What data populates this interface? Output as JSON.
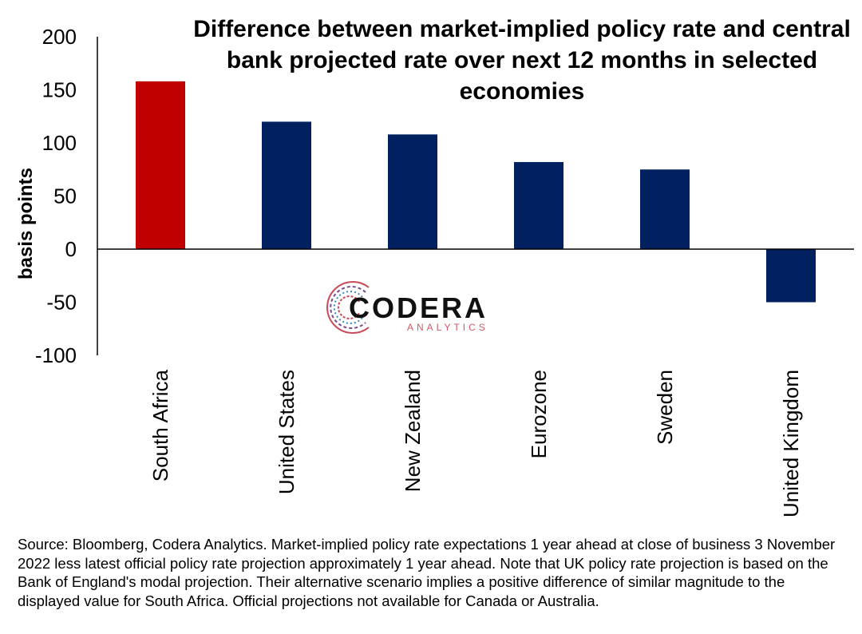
{
  "chart_data": {
    "type": "bar",
    "title_lines": [
      "Difference between market-implied policy rate and central",
      "bank projected rate over next 12 months in selected",
      "economies"
    ],
    "ylabel": "basis points",
    "ylim": [
      -100,
      200
    ],
    "yticks": [
      200,
      150,
      100,
      50,
      0,
      -50,
      -100
    ],
    "ytick_labels": [
      "200",
      "150",
      "100",
      "50",
      "0",
      "-50",
      "-100"
    ],
    "categories": [
      "South Africa",
      "United States",
      "New Zealand",
      "Eurozone",
      "Sweden",
      "United Kingdom"
    ],
    "values": [
      158,
      120,
      108,
      82,
      75,
      -50
    ],
    "colors": [
      "#c00000",
      "#002060",
      "#002060",
      "#002060",
      "#002060",
      "#002060"
    ],
    "grid": false,
    "legend": "none"
  },
  "logo": {
    "main": "CODERA",
    "sub": "ANALYTICS"
  },
  "source_note": "Source: Bloomberg, Codera Analytics. Market-implied policy rate expectations 1 year ahead at close of business 3 November 2022 less latest official policy rate projection approximately 1 year ahead. Note that UK policy rate projection is based on the Bank of England's modal projection. Their alternative scenario implies a positive difference of similar magnitude to the displayed value for South Africa. Official projections not available for Canada or Australia."
}
